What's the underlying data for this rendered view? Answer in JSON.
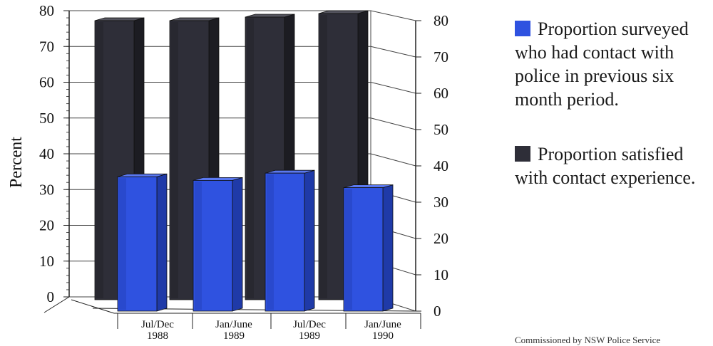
{
  "chart_data": {
    "type": "bar",
    "categories": [
      [
        "Jul/Dec",
        "1988"
      ],
      [
        "Jan/June",
        "1989"
      ],
      [
        "Jul/Dec",
        "1989"
      ],
      [
        "Jan/June",
        "1990"
      ]
    ],
    "series": [
      {
        "name": "Proportion satisfied with contact experience.",
        "color": "#2e2e38",
        "values": [
          78,
          78,
          79,
          80
        ]
      },
      {
        "name": "Proportion surveyed who had contact with police in previous six month period.",
        "color": "#2f52e0",
        "values": [
          37,
          36,
          38,
          34
        ]
      }
    ],
    "ylabel": "Percent",
    "ylim": [
      0,
      80
    ],
    "yticks": [
      "0",
      "10",
      "20",
      "30",
      "40",
      "50",
      "60",
      "70",
      "80"
    ],
    "grid": true,
    "legend_position": "right"
  },
  "legend": [
    {
      "label": "Proportion surveyed who had contact with police in previous six month period.",
      "color": "#2f52e0"
    },
    {
      "label": "Proportion satisfied with contact experience.",
      "color": "#2e2e38"
    }
  ],
  "credit": "Commissioned by NSW Police Service"
}
